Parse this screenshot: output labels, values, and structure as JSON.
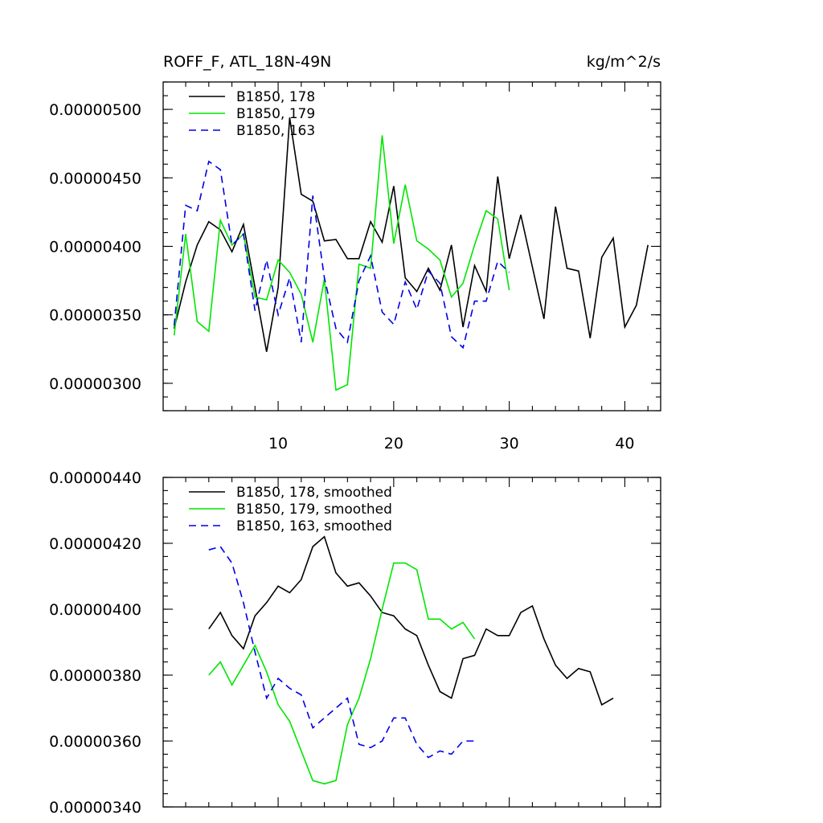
{
  "header": {
    "left_title": "ROFF_F, ATL_18N-49N",
    "right_title": "kg/m^2/s"
  },
  "colors": {
    "series_178": "#000000",
    "series_179": "#00e600",
    "series_163": "#0000e6"
  },
  "chart_data": [
    {
      "type": "line",
      "title": "ROFF_F, ATL_18N-49N",
      "units": "kg/m^2/s",
      "xlim": [
        0.05,
        43.1
      ],
      "ylim": [
        2.8e-06,
        5.2e-06
      ],
      "xticks": [
        10,
        20,
        30,
        40
      ],
      "xtick_labels": [
        "10",
        "20",
        "30",
        "40"
      ],
      "yticks": [
        3e-06,
        3.5e-06,
        4e-06,
        4.5e-06,
        5e-06
      ],
      "ytick_labels": [
        "0.00000300",
        "0.00000350",
        "0.00000400",
        "0.00000450",
        "0.00000500"
      ],
      "legend_position": "top-left",
      "series": [
        {
          "name": "B1850, 178",
          "x": [
            1,
            2,
            3,
            4,
            5,
            6,
            7,
            8,
            9,
            10,
            11,
            12,
            13,
            14,
            15,
            16,
            17,
            18,
            19,
            20,
            21,
            22,
            23,
            24,
            25,
            26,
            27,
            28,
            29,
            30,
            31,
            32,
            33,
            34,
            35,
            36,
            37,
            38,
            39,
            40,
            41,
            42
          ],
          "values": [
            3.4e-06,
            3.74e-06,
            4.01e-06,
            4.18e-06,
            4.12e-06,
            3.96e-06,
            4.16e-06,
            3.7e-06,
            3.23e-06,
            3.7e-06,
            4.94e-06,
            4.38e-06,
            4.33e-06,
            4.04e-06,
            4.05e-06,
            3.91e-06,
            3.91e-06,
            4.18e-06,
            4.03e-06,
            4.44e-06,
            3.77e-06,
            3.67e-06,
            3.84e-06,
            3.68e-06,
            4.01e-06,
            3.41e-06,
            3.86e-06,
            3.67e-06,
            4.51e-06,
            3.91e-06,
            4.23e-06,
            3.85e-06,
            3.47e-06,
            4.29e-06,
            3.84e-06,
            3.82e-06,
            3.33e-06,
            3.92e-06,
            4.06e-06,
            3.41e-06,
            3.57e-06,
            4.01e-06
          ]
        },
        {
          "name": "B1850, 179",
          "x": [
            1,
            2,
            3,
            4,
            5,
            6,
            7,
            8,
            9,
            10,
            11,
            12,
            13,
            14,
            15,
            16,
            17,
            18,
            19,
            20,
            21,
            22,
            23,
            24,
            25,
            26,
            27,
            28,
            29,
            30
          ],
          "values": [
            3.35e-06,
            4.09e-06,
            3.45e-06,
            3.38e-06,
            4.19e-06,
            4.01e-06,
            4.09e-06,
            3.63e-06,
            3.61e-06,
            3.9e-06,
            3.81e-06,
            3.65e-06,
            3.3e-06,
            3.76e-06,
            2.95e-06,
            2.99e-06,
            3.87e-06,
            3.84e-06,
            4.81e-06,
            4.02e-06,
            4.45e-06,
            4.04e-06,
            3.98e-06,
            3.9e-06,
            3.63e-06,
            3.73e-06,
            4.01e-06,
            4.26e-06,
            4.2e-06,
            3.68e-06
          ]
        },
        {
          "name": "B1850, 163",
          "x": [
            1,
            2,
            3,
            4,
            5,
            6,
            7,
            8,
            9,
            10,
            11,
            12,
            13,
            14,
            15,
            16,
            17,
            18,
            19,
            20,
            21,
            22,
            23,
            24,
            25,
            26,
            27,
            28,
            29,
            30
          ],
          "values": [
            3.42e-06,
            4.3e-06,
            4.26e-06,
            4.62e-06,
            4.56e-06,
            4.01e-06,
            4.09e-06,
            3.53e-06,
            3.9e-06,
            3.5e-06,
            3.77e-06,
            3.3e-06,
            4.37e-06,
            3.77e-06,
            3.4e-06,
            3.3e-06,
            3.75e-06,
            3.93e-06,
            3.52e-06,
            3.43e-06,
            3.74e-06,
            3.54e-06,
            3.82e-06,
            3.73e-06,
            3.34e-06,
            3.26e-06,
            3.6e-06,
            3.6e-06,
            3.89e-06,
            3.81e-06
          ]
        }
      ]
    },
    {
      "type": "line",
      "title": "",
      "xlim": [
        0.05,
        43.1
      ],
      "ylim": [
        3.4e-06,
        4.4e-06
      ],
      "xticks": [
        10,
        20,
        30,
        40
      ],
      "xtick_labels": [],
      "yticks": [
        3.4e-06,
        3.6e-06,
        3.8e-06,
        4e-06,
        4.2e-06,
        4.4e-06
      ],
      "ytick_labels": [
        "0.00000340",
        "0.00000360",
        "0.00000380",
        "0.00000400",
        "0.00000420",
        "0.00000440"
      ],
      "legend_position": "top-left",
      "series": [
        {
          "name": "B1850, 178, smoothed",
          "x": [
            4,
            5,
            6,
            7,
            8,
            9,
            10,
            11,
            12,
            13,
            14,
            15,
            16,
            17,
            18,
            19,
            20,
            21,
            22,
            23,
            24,
            25,
            26,
            27,
            28,
            29,
            30,
            31,
            32,
            33,
            34,
            35,
            36,
            37,
            38,
            39
          ],
          "values": [
            3.94e-06,
            3.99e-06,
            3.92e-06,
            3.88e-06,
            3.98e-06,
            4.02e-06,
            4.07e-06,
            4.05e-06,
            4.09e-06,
            4.19e-06,
            4.22e-06,
            4.11e-06,
            4.07e-06,
            4.08e-06,
            4.04e-06,
            3.99e-06,
            3.98e-06,
            3.94e-06,
            3.92e-06,
            3.83e-06,
            3.75e-06,
            3.73e-06,
            3.85e-06,
            3.86e-06,
            3.94e-06,
            3.92e-06,
            3.92e-06,
            3.99e-06,
            4.01e-06,
            3.91e-06,
            3.83e-06,
            3.79e-06,
            3.82e-06,
            3.81e-06,
            3.71e-06,
            3.73e-06
          ]
        },
        {
          "name": "B1850, 179, smoothed",
          "x": [
            4,
            5,
            6,
            7,
            8,
            9,
            10,
            11,
            12,
            13,
            14,
            15,
            16,
            17,
            18,
            19,
            20,
            21,
            22,
            23,
            24,
            25,
            26,
            27
          ],
          "values": [
            3.8e-06,
            3.84e-06,
            3.77e-06,
            3.83e-06,
            3.89e-06,
            3.81e-06,
            3.71e-06,
            3.66e-06,
            3.57e-06,
            3.48e-06,
            3.47e-06,
            3.48e-06,
            3.65e-06,
            3.73e-06,
            3.85e-06,
            4e-06,
            4.14e-06,
            4.14e-06,
            4.12e-06,
            3.97e-06,
            3.97e-06,
            3.94e-06,
            3.96e-06,
            3.91e-06
          ]
        },
        {
          "name": "B1850, 163, smoothed",
          "x": [
            4,
            5,
            6,
            7,
            8,
            9,
            10,
            11,
            12,
            13,
            14,
            15,
            16,
            17,
            18,
            19,
            20,
            21,
            22,
            23,
            24,
            25,
            26,
            27
          ],
          "values": [
            4.18e-06,
            4.19e-06,
            4.14e-06,
            4.02e-06,
            3.87e-06,
            3.73e-06,
            3.79e-06,
            3.76e-06,
            3.74e-06,
            3.64e-06,
            3.67e-06,
            3.7e-06,
            3.73e-06,
            3.59e-06,
            3.58e-06,
            3.6e-06,
            3.67e-06,
            3.67e-06,
            3.59e-06,
            3.55e-06,
            3.57e-06,
            3.56e-06,
            3.6e-06,
            3.6e-06
          ]
        }
      ]
    }
  ]
}
